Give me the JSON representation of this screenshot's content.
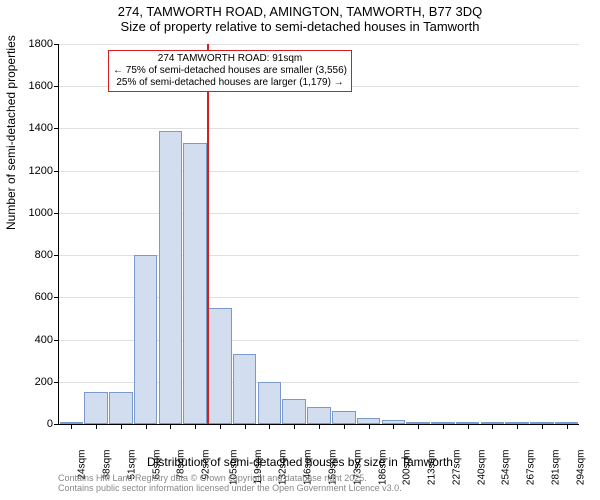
{
  "title": {
    "line1": "274, TAMWORTH ROAD, AMINGTON, TAMWORTH, B77 3DQ",
    "line2": "Size of property relative to semi-detached houses in Tamworth"
  },
  "chart": {
    "type": "bar",
    "ylabel": "Number of semi-detached properties",
    "xlabel": "Distribution of semi-detached houses by size in Tamworth",
    "ylim": [
      0,
      1800
    ],
    "ytick_step": 200,
    "yticks": [
      0,
      200,
      400,
      600,
      800,
      1000,
      1200,
      1400,
      1600,
      1800
    ],
    "grid_color": "#e0e0e0",
    "background_color": "#ffffff",
    "bar_fill": "#d2deef",
    "bar_border": "#7a9acc",
    "ref_line_color": "#d02020",
    "ref_line_x_index": 5,
    "label_fontsize": 12,
    "tick_fontsize": 10,
    "categories": [
      "24sqm",
      "38sqm",
      "51sqm",
      "65sqm",
      "78sqm",
      "92sqm",
      "105sqm",
      "119sqm",
      "132sqm",
      "146sqm",
      "159sqm",
      "173sqm",
      "186sqm",
      "200sqm",
      "213sqm",
      "227sqm",
      "240sqm",
      "254sqm",
      "267sqm",
      "281sqm",
      "294sqm"
    ],
    "values": [
      10,
      150,
      150,
      800,
      1390,
      1330,
      550,
      330,
      200,
      120,
      80,
      60,
      30,
      20,
      10,
      5,
      5,
      3,
      2,
      2,
      2
    ]
  },
  "annotation": {
    "line1": "274 TAMWORTH ROAD: 91sqm",
    "line2": "← 75% of semi-detached houses are smaller (3,556)",
    "line3": "25% of semi-detached houses are larger (1,179) →"
  },
  "footer": {
    "line1": "Contains HM Land Registry data © Crown copyright and database right 2025.",
    "line2": "Contains public sector information licensed under the Open Government Licence v3.0."
  }
}
